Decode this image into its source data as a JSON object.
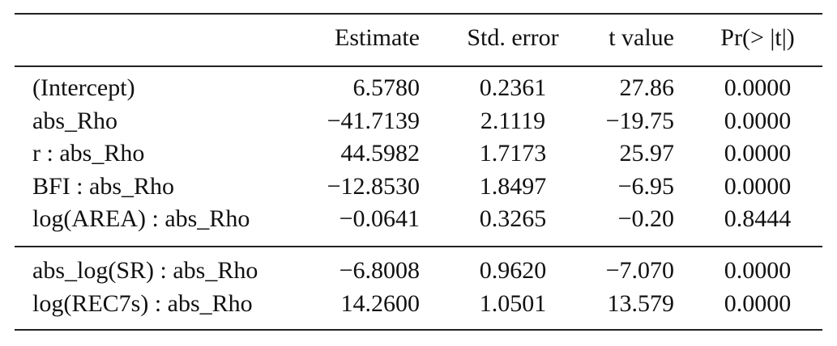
{
  "table": {
    "header": [
      "Estimate",
      "Std. error",
      "t value",
      "Pr(> |t|)"
    ],
    "groups": [
      {
        "rows": [
          [
            "(Intercept)",
            "6.5780",
            "0.2361",
            "27.86",
            "0.0000"
          ],
          [
            "abs_Rho",
            "−41.7139",
            "2.1119",
            "−19.75",
            "0.0000"
          ],
          [
            "r : abs_Rho",
            "44.5982",
            "1.7173",
            "25.97",
            "0.0000"
          ],
          [
            "BFI : abs_Rho",
            "−12.8530",
            "1.8497",
            "−6.95",
            "0.0000"
          ],
          [
            "log(AREA) : abs_Rho",
            "−0.0641",
            "0.3265",
            "−0.20",
            "0.8444"
          ]
        ]
      },
      {
        "rows": [
          [
            "abs_log(SR) : abs_Rho",
            "−6.8008",
            "0.9620",
            "−7.070",
            "0.0000"
          ],
          [
            "log(REC7s) : abs_Rho",
            "14.2600",
            "1.0501",
            "13.579",
            "0.0000"
          ]
        ]
      }
    ]
  }
}
